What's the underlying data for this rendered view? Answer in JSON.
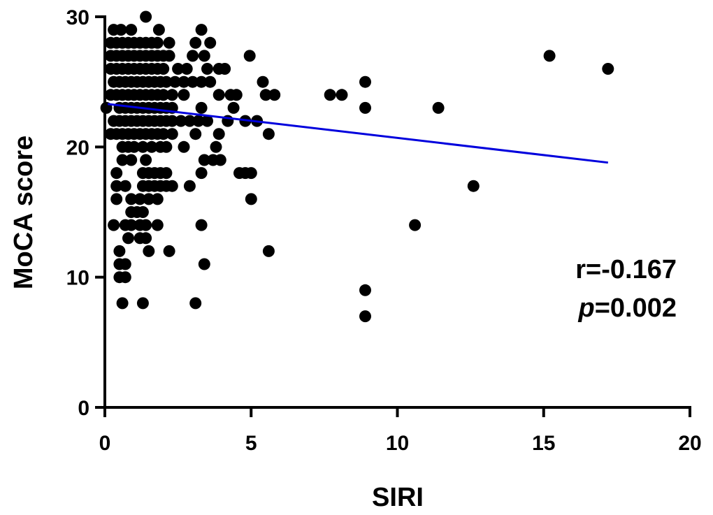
{
  "chart_data": {
    "type": "scatter",
    "title": "",
    "xlabel": "SIRI",
    "ylabel": "MoCA score",
    "xlim": [
      0,
      20
    ],
    "ylim": [
      0,
      30
    ],
    "xticks": [
      "0",
      "5",
      "10",
      "15",
      "20"
    ],
    "yticks": [
      "0",
      "10",
      "20",
      "30"
    ],
    "xtick_values": [
      0,
      5,
      10,
      15,
      20
    ],
    "ytick_values": [
      0,
      10,
      20,
      30
    ],
    "grid": false,
    "point_color": "#000000",
    "fit_line": {
      "x": [
        0.1,
        17.2
      ],
      "y": [
        23.3,
        18.8
      ],
      "color": "#0000dd"
    },
    "annotation": {
      "r_text": "r=-0.167",
      "p_label": "p",
      "p_value": "=0.002"
    },
    "points": [
      [
        0.05,
        23
      ],
      [
        1.4,
        30
      ],
      [
        0.3,
        29
      ],
      [
        0.55,
        29
      ],
      [
        0.9,
        29
      ],
      [
        1.85,
        29
      ],
      [
        3.3,
        29
      ],
      [
        0.2,
        28
      ],
      [
        0.4,
        28
      ],
      [
        0.6,
        28
      ],
      [
        0.8,
        28
      ],
      [
        1.0,
        28
      ],
      [
        1.2,
        28
      ],
      [
        1.4,
        28
      ],
      [
        1.6,
        28
      ],
      [
        1.8,
        28
      ],
      [
        2.2,
        28
      ],
      [
        3.1,
        28
      ],
      [
        3.6,
        28
      ],
      [
        0.2,
        27
      ],
      [
        0.4,
        27
      ],
      [
        0.6,
        27
      ],
      [
        0.8,
        27
      ],
      [
        1.0,
        27
      ],
      [
        1.2,
        27
      ],
      [
        1.4,
        27
      ],
      [
        1.6,
        27
      ],
      [
        1.8,
        27
      ],
      [
        2.0,
        27
      ],
      [
        2.2,
        27
      ],
      [
        3.0,
        27
      ],
      [
        3.4,
        27
      ],
      [
        4.95,
        27
      ],
      [
        15.2,
        27
      ],
      [
        0.2,
        26
      ],
      [
        0.4,
        26
      ],
      [
        0.6,
        26
      ],
      [
        0.8,
        26
      ],
      [
        1.0,
        26
      ],
      [
        1.2,
        26
      ],
      [
        1.4,
        26
      ],
      [
        1.6,
        26
      ],
      [
        1.8,
        26
      ],
      [
        2.0,
        26
      ],
      [
        2.5,
        26
      ],
      [
        2.8,
        26
      ],
      [
        3.5,
        26
      ],
      [
        3.9,
        26
      ],
      [
        4.1,
        26
      ],
      [
        17.2,
        26
      ],
      [
        0.3,
        25
      ],
      [
        0.5,
        25
      ],
      [
        0.7,
        25
      ],
      [
        0.9,
        25
      ],
      [
        1.1,
        25
      ],
      [
        1.3,
        25
      ],
      [
        1.5,
        25
      ],
      [
        1.7,
        25
      ],
      [
        1.9,
        25
      ],
      [
        2.1,
        25
      ],
      [
        2.4,
        25
      ],
      [
        2.7,
        25
      ],
      [
        3.0,
        25
      ],
      [
        3.3,
        25
      ],
      [
        3.6,
        25
      ],
      [
        5.4,
        25
      ],
      [
        8.9,
        25
      ],
      [
        0.2,
        24
      ],
      [
        0.4,
        24
      ],
      [
        0.6,
        24
      ],
      [
        0.8,
        24
      ],
      [
        1.0,
        24
      ],
      [
        1.2,
        24
      ],
      [
        1.4,
        24
      ],
      [
        1.6,
        24
      ],
      [
        1.8,
        24
      ],
      [
        2.0,
        24
      ],
      [
        2.3,
        24
      ],
      [
        2.7,
        24
      ],
      [
        3.9,
        24
      ],
      [
        4.3,
        24
      ],
      [
        4.5,
        24
      ],
      [
        5.5,
        24
      ],
      [
        5.8,
        24
      ],
      [
        7.7,
        24
      ],
      [
        8.1,
        24
      ],
      [
        0.5,
        23
      ],
      [
        0.7,
        23
      ],
      [
        0.9,
        23
      ],
      [
        1.1,
        23
      ],
      [
        1.3,
        23
      ],
      [
        1.5,
        23
      ],
      [
        1.7,
        23
      ],
      [
        1.9,
        23
      ],
      [
        2.1,
        23
      ],
      [
        2.3,
        23
      ],
      [
        3.3,
        23
      ],
      [
        4.4,
        23
      ],
      [
        8.9,
        23
      ],
      [
        11.4,
        23
      ],
      [
        0.3,
        22
      ],
      [
        0.5,
        22
      ],
      [
        0.7,
        22
      ],
      [
        0.9,
        22
      ],
      [
        1.1,
        22
      ],
      [
        1.3,
        22
      ],
      [
        1.5,
        22
      ],
      [
        1.7,
        22
      ],
      [
        1.9,
        22
      ],
      [
        2.1,
        22
      ],
      [
        2.3,
        22
      ],
      [
        2.6,
        22
      ],
      [
        2.9,
        22
      ],
      [
        3.2,
        22
      ],
      [
        3.5,
        22
      ],
      [
        4.2,
        22
      ],
      [
        4.8,
        22
      ],
      [
        5.2,
        22
      ],
      [
        0.2,
        21
      ],
      [
        0.4,
        21
      ],
      [
        0.6,
        21
      ],
      [
        0.8,
        21
      ],
      [
        1.0,
        21
      ],
      [
        1.2,
        21
      ],
      [
        1.4,
        21
      ],
      [
        1.6,
        21
      ],
      [
        1.8,
        21
      ],
      [
        2.0,
        21
      ],
      [
        2.3,
        21
      ],
      [
        3.1,
        21
      ],
      [
        3.9,
        21
      ],
      [
        5.6,
        21
      ],
      [
        0.6,
        20
      ],
      [
        0.8,
        20
      ],
      [
        1.0,
        20
      ],
      [
        1.3,
        20
      ],
      [
        1.6,
        20
      ],
      [
        1.9,
        20
      ],
      [
        2.1,
        20
      ],
      [
        2.7,
        20
      ],
      [
        3.8,
        20
      ],
      [
        0.6,
        19
      ],
      [
        0.9,
        19
      ],
      [
        1.4,
        19
      ],
      [
        3.4,
        19
      ],
      [
        3.7,
        19
      ],
      [
        3.95,
        19
      ],
      [
        0.4,
        18
      ],
      [
        1.3,
        18
      ],
      [
        1.5,
        18
      ],
      [
        1.7,
        18
      ],
      [
        1.9,
        18
      ],
      [
        2.1,
        18
      ],
      [
        3.3,
        18
      ],
      [
        4.6,
        18
      ],
      [
        4.8,
        18
      ],
      [
        5.0,
        18
      ],
      [
        0.4,
        17
      ],
      [
        0.7,
        17
      ],
      [
        1.3,
        17
      ],
      [
        1.5,
        17
      ],
      [
        1.7,
        17
      ],
      [
        1.9,
        17
      ],
      [
        2.1,
        17
      ],
      [
        2.3,
        17
      ],
      [
        2.9,
        17
      ],
      [
        12.6,
        17
      ],
      [
        0.4,
        16
      ],
      [
        0.9,
        16
      ],
      [
        1.2,
        16
      ],
      [
        1.5,
        16
      ],
      [
        1.8,
        16
      ],
      [
        5.0,
        16
      ],
      [
        0.9,
        15
      ],
      [
        1.1,
        15
      ],
      [
        1.3,
        15
      ],
      [
        0.3,
        14
      ],
      [
        0.7,
        14
      ],
      [
        0.9,
        14
      ],
      [
        1.2,
        14
      ],
      [
        1.4,
        14
      ],
      [
        1.8,
        14
      ],
      [
        3.3,
        14
      ],
      [
        10.6,
        14
      ],
      [
        0.8,
        13
      ],
      [
        1.2,
        13
      ],
      [
        1.4,
        13
      ],
      [
        0.5,
        12
      ],
      [
        1.5,
        12
      ],
      [
        2.2,
        12
      ],
      [
        5.6,
        12
      ],
      [
        0.5,
        11
      ],
      [
        0.7,
        11
      ],
      [
        3.4,
        11
      ],
      [
        0.5,
        10
      ],
      [
        0.7,
        10
      ],
      [
        8.9,
        9
      ],
      [
        0.6,
        8
      ],
      [
        1.3,
        8
      ],
      [
        3.1,
        8
      ],
      [
        8.9,
        7
      ]
    ]
  }
}
